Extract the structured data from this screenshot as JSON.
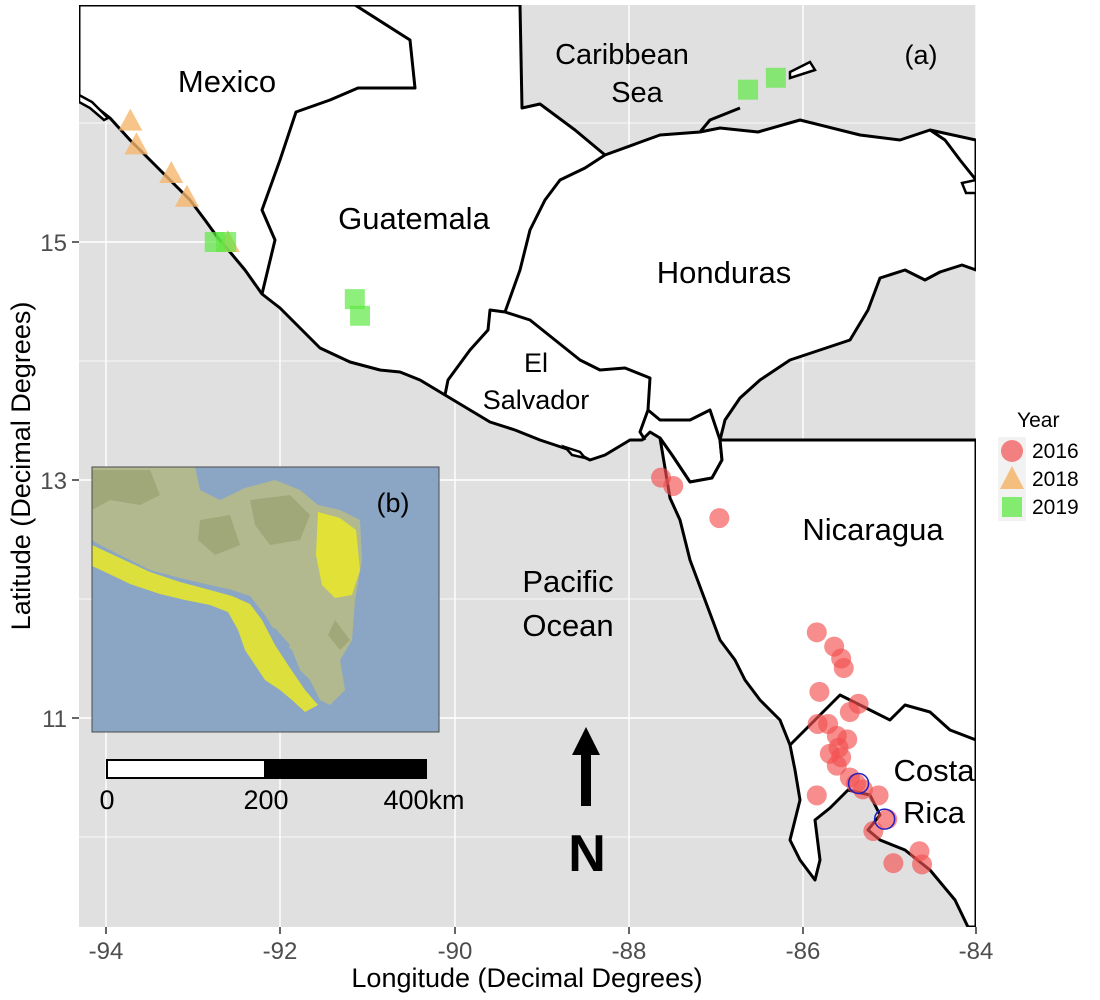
{
  "panel_a_label": "(a)",
  "panel_b_label": "(b)",
  "axes": {
    "x_title": "Longitude (Decimal Degrees)",
    "y_title": "Latitude (Decimal Degrees)",
    "x_ticks": [
      "-94",
      "-92",
      "-90",
      "-88",
      "-86",
      "-84"
    ],
    "y_ticks": [
      "15",
      "13",
      "11"
    ]
  },
  "regions": {
    "mexico": "Mexico",
    "caribbean_1": "Caribbean",
    "caribbean_2": "Sea",
    "guatemala": "Guatemala",
    "honduras": "Honduras",
    "el_salvador_1": "El",
    "el_salvador_2": "Salvador",
    "nicaragua": "Nicaragua",
    "pacific_1": "Pacific",
    "pacific_2": "Ocean",
    "costa_rica_1": "Costa",
    "costa_rica_2": "Rica"
  },
  "scale_bar": {
    "label_0": "0",
    "label_1": "200",
    "label_2": "400km"
  },
  "north_arrow": "N",
  "legend": {
    "title": "Year",
    "items": [
      {
        "label": "2016",
        "shape": "circle",
        "color": "#f8766d"
      },
      {
        "label": "2018",
        "shape": "triangle",
        "color": "#f5b56b"
      },
      {
        "label": "2019",
        "shape": "square",
        "color": "#7cf05a"
      }
    ]
  },
  "colors": {
    "panel_bg": "#e0e0e0",
    "land": "#ffffff",
    "border": "#000000",
    "y2016": "#f25050",
    "y2018": "#f5b56b",
    "y2019": "#5fe845",
    "highlight_ring": "#2020c0",
    "inset_sea": "#8aa6c4",
    "inset_land": "#b3b98f",
    "inset_range": "#e6e62e"
  },
  "chart_data": {
    "type": "scatter",
    "x_range": [
      -94.3,
      -84
    ],
    "y_range": [
      9.4,
      16.9
    ],
    "series": [
      {
        "name": "2016",
        "points": [
          [
            -87.62,
            13.02
          ],
          [
            -87.48,
            12.95
          ],
          [
            -86.95,
            12.68
          ],
          [
            -85.83,
            11.72
          ],
          [
            -85.63,
            11.6
          ],
          [
            -85.55,
            11.5
          ],
          [
            -85.52,
            11.42
          ],
          [
            -85.8,
            11.22
          ],
          [
            -85.35,
            11.12
          ],
          [
            -85.45,
            11.05
          ],
          [
            -85.82,
            10.95
          ],
          [
            -85.7,
            10.95
          ],
          [
            -85.6,
            10.85
          ],
          [
            -85.48,
            10.82
          ],
          [
            -85.58,
            10.75
          ],
          [
            -85.68,
            10.7
          ],
          [
            -85.55,
            10.67
          ],
          [
            -85.6,
            10.6
          ],
          [
            -85.45,
            10.5
          ],
          [
            -85.38,
            10.45
          ],
          [
            -85.3,
            10.4
          ],
          [
            -85.12,
            10.35
          ],
          [
            -85.83,
            10.35
          ],
          [
            -85.02,
            10.15
          ],
          [
            -85.18,
            10.05
          ],
          [
            -84.65,
            9.88
          ],
          [
            -84.95,
            9.78
          ],
          [
            -84.62,
            9.77
          ]
        ]
      },
      {
        "name": "2018",
        "points": [
          [
            -93.72,
            16.02
          ],
          [
            -93.65,
            15.82
          ],
          [
            -93.25,
            15.58
          ],
          [
            -93.07,
            15.38
          ],
          [
            -92.6,
            15.0
          ]
        ]
      },
      {
        "name": "2019",
        "points": [
          [
            -92.75,
            15.0
          ],
          [
            -92.62,
            15.0
          ],
          [
            -91.14,
            14.52
          ],
          [
            -91.08,
            14.38
          ],
          [
            -86.62,
            16.28
          ],
          [
            -86.3,
            16.38
          ]
        ]
      }
    ],
    "highlighted_points": [
      [
        -85.35,
        10.45
      ],
      [
        -85.05,
        10.15
      ]
    ]
  }
}
